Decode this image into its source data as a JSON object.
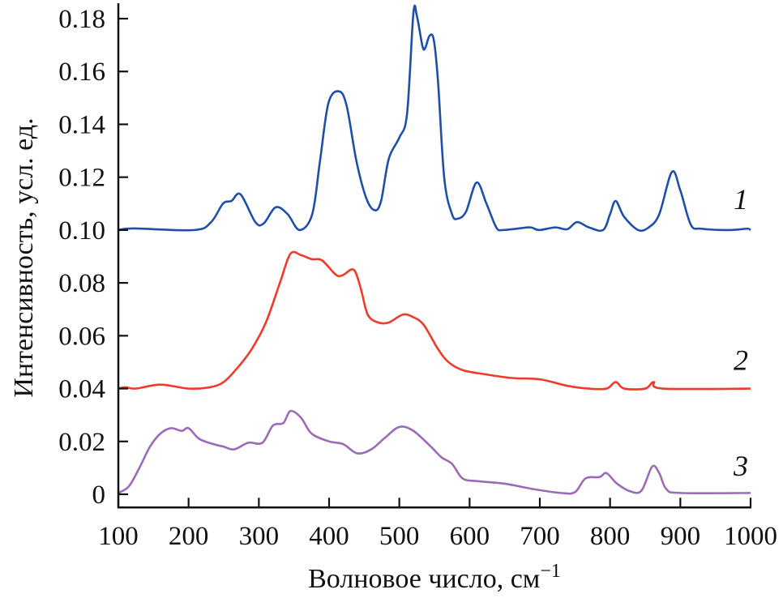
{
  "chart_data": {
    "type": "line",
    "title": "",
    "xlabel": "Волновое число, см",
    "xlabel_superscript": "−1",
    "ylabel": "Интенсивность, усл. ед.",
    "xlim": [
      100,
      1000
    ],
    "ylim": [
      -0.005,
      0.185
    ],
    "xticks": [
      100,
      200,
      300,
      400,
      500,
      600,
      700,
      800,
      900,
      1000
    ],
    "xtick_labels": [
      "100",
      "200",
      "300",
      "400",
      "500",
      "600",
      "700",
      "800",
      "900",
      "1000"
    ],
    "yticks": [
      0,
      0.02,
      0.04,
      0.06,
      0.08,
      0.1,
      0.12,
      0.14,
      0.16,
      0.18
    ],
    "ytick_labels": [
      "0",
      "0.02",
      "0.04",
      "0.06",
      "0.08",
      "0.10",
      "0.12",
      "0.14",
      "0.16",
      "0.18"
    ],
    "grid": false,
    "legend": "none",
    "series": [
      {
        "label": "1",
        "color": "#1f4fa8",
        "x": [
          100,
          122,
          208,
          232,
          249,
          261,
          274,
          295,
          307,
          324,
          341,
          358,
          376,
          387,
          399,
          414,
          425,
          439,
          453,
          465,
          474,
          485,
          500,
          511,
          520,
          525,
          533,
          537,
          543,
          549,
          555,
          564,
          575,
          583,
          595,
          610,
          624,
          638,
          647,
          670,
          687,
          699,
          722,
          739,
          753,
          770,
          790,
          800,
          808,
          820,
          840,
          855,
          870,
          888,
          900,
          915,
          930,
          970,
          995,
          1000
        ],
        "y": [
          0.1,
          0.1006,
          0.1,
          0.103,
          0.11,
          0.111,
          0.1135,
          0.103,
          0.1025,
          0.1086,
          0.106,
          0.1,
          0.106,
          0.126,
          0.148,
          0.1525,
          0.147,
          0.126,
          0.112,
          0.1075,
          0.111,
          0.127,
          0.135,
          0.144,
          0.182,
          0.181,
          0.1695,
          0.169,
          0.1735,
          0.172,
          0.1565,
          0.1195,
          0.106,
          0.1043,
          0.107,
          0.118,
          0.11,
          0.101,
          0.1,
          0.1006,
          0.101,
          0.1,
          0.101,
          0.1003,
          0.103,
          0.101,
          0.1,
          0.106,
          0.111,
          0.105,
          0.1,
          0.101,
          0.106,
          0.122,
          0.115,
          0.102,
          0.1005,
          0.1,
          0.1005,
          0.1
        ]
      },
      {
        "label": "2",
        "color": "#f03a2a",
        "x": [
          100,
          110,
          125,
          160,
          200,
          230,
          250,
          270,
          290,
          310,
          330,
          345,
          360,
          375,
          390,
          410,
          420,
          435,
          445,
          455,
          470,
          485,
          505,
          520,
          535,
          555,
          570,
          590,
          620,
          660,
          700,
          740,
          770,
          795,
          808,
          820,
          850,
          862,
          875,
          1000
        ],
        "y": [
          0.04,
          0.0405,
          0.04,
          0.0415,
          0.04,
          0.0405,
          0.0425,
          0.048,
          0.055,
          0.065,
          0.08,
          0.091,
          0.0905,
          0.089,
          0.0885,
          0.083,
          0.083,
          0.085,
          0.078,
          0.068,
          0.065,
          0.065,
          0.068,
          0.067,
          0.064,
          0.055,
          0.05,
          0.047,
          0.0455,
          0.044,
          0.0435,
          0.041,
          0.04,
          0.04,
          0.0425,
          0.04,
          0.04,
          0.0425,
          0.04,
          0.04
        ]
      },
      {
        "label": "3",
        "color": "#9b6bb8",
        "x": [
          100,
          115,
          130,
          145,
          160,
          175,
          190,
          200,
          215,
          235,
          250,
          265,
          285,
          305,
          320,
          335,
          345,
          360,
          375,
          400,
          420,
          440,
          460,
          480,
          500,
          520,
          545,
          560,
          575,
          590,
          610,
          650,
          690,
          730,
          750,
          765,
          785,
          795,
          810,
          830,
          845,
          860,
          870,
          880,
          900,
          1000
        ],
        "y": [
          0.0005,
          0.003,
          0.01,
          0.018,
          0.023,
          0.025,
          0.024,
          0.025,
          0.021,
          0.019,
          0.018,
          0.017,
          0.0195,
          0.0195,
          0.026,
          0.027,
          0.0315,
          0.029,
          0.023,
          0.02,
          0.019,
          0.0155,
          0.017,
          0.0215,
          0.0255,
          0.024,
          0.018,
          0.014,
          0.0115,
          0.006,
          0.005,
          0.004,
          0.002,
          0.0005,
          0.0008,
          0.006,
          0.0065,
          0.008,
          0.004,
          0.001,
          0.0015,
          0.0105,
          0.008,
          0.002,
          0.0005,
          0.0005
        ]
      }
    ]
  }
}
